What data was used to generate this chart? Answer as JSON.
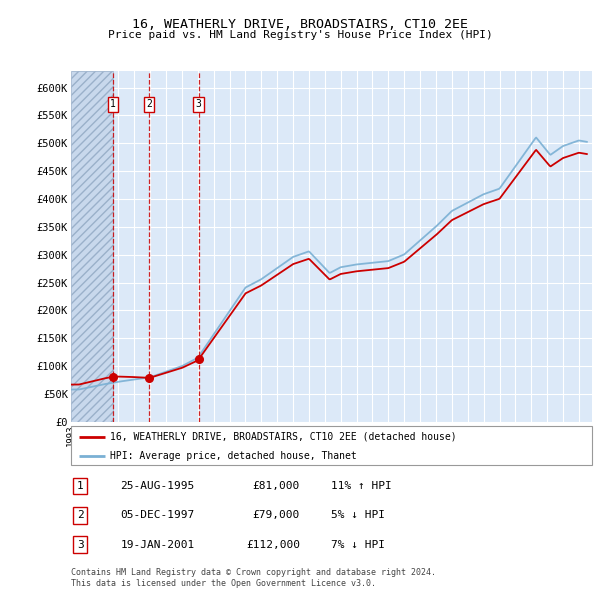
{
  "title": "16, WEATHERLY DRIVE, BROADSTAIRS, CT10 2EE",
  "subtitle": "Price paid vs. HM Land Registry's House Price Index (HPI)",
  "ylabel_values": [
    0,
    50000,
    100000,
    150000,
    200000,
    250000,
    300000,
    350000,
    400000,
    450000,
    500000,
    550000,
    600000
  ],
  "ylabel_labels": [
    "£0",
    "£50K",
    "£100K",
    "£150K",
    "£200K",
    "£250K",
    "£300K",
    "£350K",
    "£400K",
    "£450K",
    "£500K",
    "£550K",
    "£600K"
  ],
  "xlim_start": 1993.0,
  "xlim_end": 2025.8,
  "ylim_min": 0,
  "ylim_max": 630000,
  "transactions": [
    {
      "num": 1,
      "date": "25-AUG-1995",
      "price": 81000,
      "year": 1995.65,
      "pct": "11%",
      "dir": "↑"
    },
    {
      "num": 2,
      "date": "05-DEC-1997",
      "price": 79000,
      "year": 1997.92,
      "pct": "5%",
      "dir": "↓"
    },
    {
      "num": 3,
      "date": "19-JAN-2001",
      "price": 112000,
      "year": 2001.05,
      "pct": "7%",
      "dir": "↓"
    }
  ],
  "legend_label_red": "16, WEATHERLY DRIVE, BROADSTAIRS, CT10 2EE (detached house)",
  "legend_label_blue": "HPI: Average price, detached house, Thanet",
  "footnote": "Contains HM Land Registry data © Crown copyright and database right 2024.\nThis data is licensed under the Open Government Licence v3.0.",
  "bg_color": "#dce9f8",
  "hatch_bg_color": "#c8d8ec",
  "grid_color": "#ffffff",
  "red_color": "#cc0000",
  "blue_color": "#7ab0d4"
}
